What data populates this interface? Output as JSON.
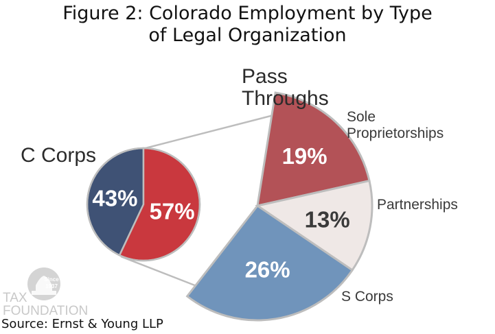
{
  "title_line1": "Figure 2: Colorado Employment by Type",
  "title_line2": "of Legal Organization",
  "source": "Source: Ernst & Young LLP",
  "logo": {
    "line1": "TAX",
    "line2": "FOUNDATION",
    "since": "Since",
    "year": "1937"
  },
  "chart_data": [
    {
      "type": "pie",
      "title": "C Corps",
      "slices": [
        {
          "label": "",
          "value": 43,
          "display": "43%",
          "color": "#3f5275"
        },
        {
          "label": "",
          "value": 57,
          "display": "57%",
          "color": "#c9383e"
        }
      ]
    },
    {
      "type": "pie",
      "title": "Pass Throughs",
      "title_lines": [
        "Pass",
        "Throughs"
      ],
      "slices": [
        {
          "label": "Sole Proprietorships",
          "label_lines": [
            "Sole",
            "Proprietorships"
          ],
          "value": 19,
          "display": "19%",
          "color": "#b35257"
        },
        {
          "label": "Partnerships",
          "label_lines": [
            "Partnerships"
          ],
          "value": 13,
          "display": "13%",
          "color": "#efe8e6"
        },
        {
          "label": "S Corps",
          "label_lines": [
            "S Corps"
          ],
          "value": 26,
          "display": "26%",
          "color": "#7094bb"
        }
      ]
    }
  ]
}
